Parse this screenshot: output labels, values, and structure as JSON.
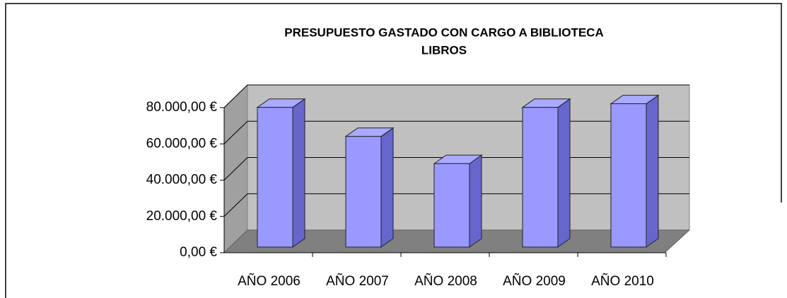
{
  "chart_data": {
    "type": "bar3d",
    "title": [
      "PRESUPUESTO GASTADO CON CARGO A BIBLIOTECA",
      "LIBROS"
    ],
    "categories": [
      "AÑO 2006",
      "AÑO 2007",
      "AÑO 2008",
      "AÑO 2009",
      "AÑO 2010"
    ],
    "values": [
      77000,
      61000,
      46000,
      77000,
      79000
    ],
    "color": "#9999ff",
    "ylim": [
      0,
      80000
    ],
    "yticks": [
      {
        "value": 0,
        "label": "0,00 €"
      },
      {
        "value": 20000,
        "label": "20.000,00 €"
      },
      {
        "value": 40000,
        "label": "40.000,00 €"
      },
      {
        "value": 60000,
        "label": "60.000,00 €"
      },
      {
        "value": 80000,
        "label": "80.000,00 €"
      }
    ],
    "grid": true
  }
}
